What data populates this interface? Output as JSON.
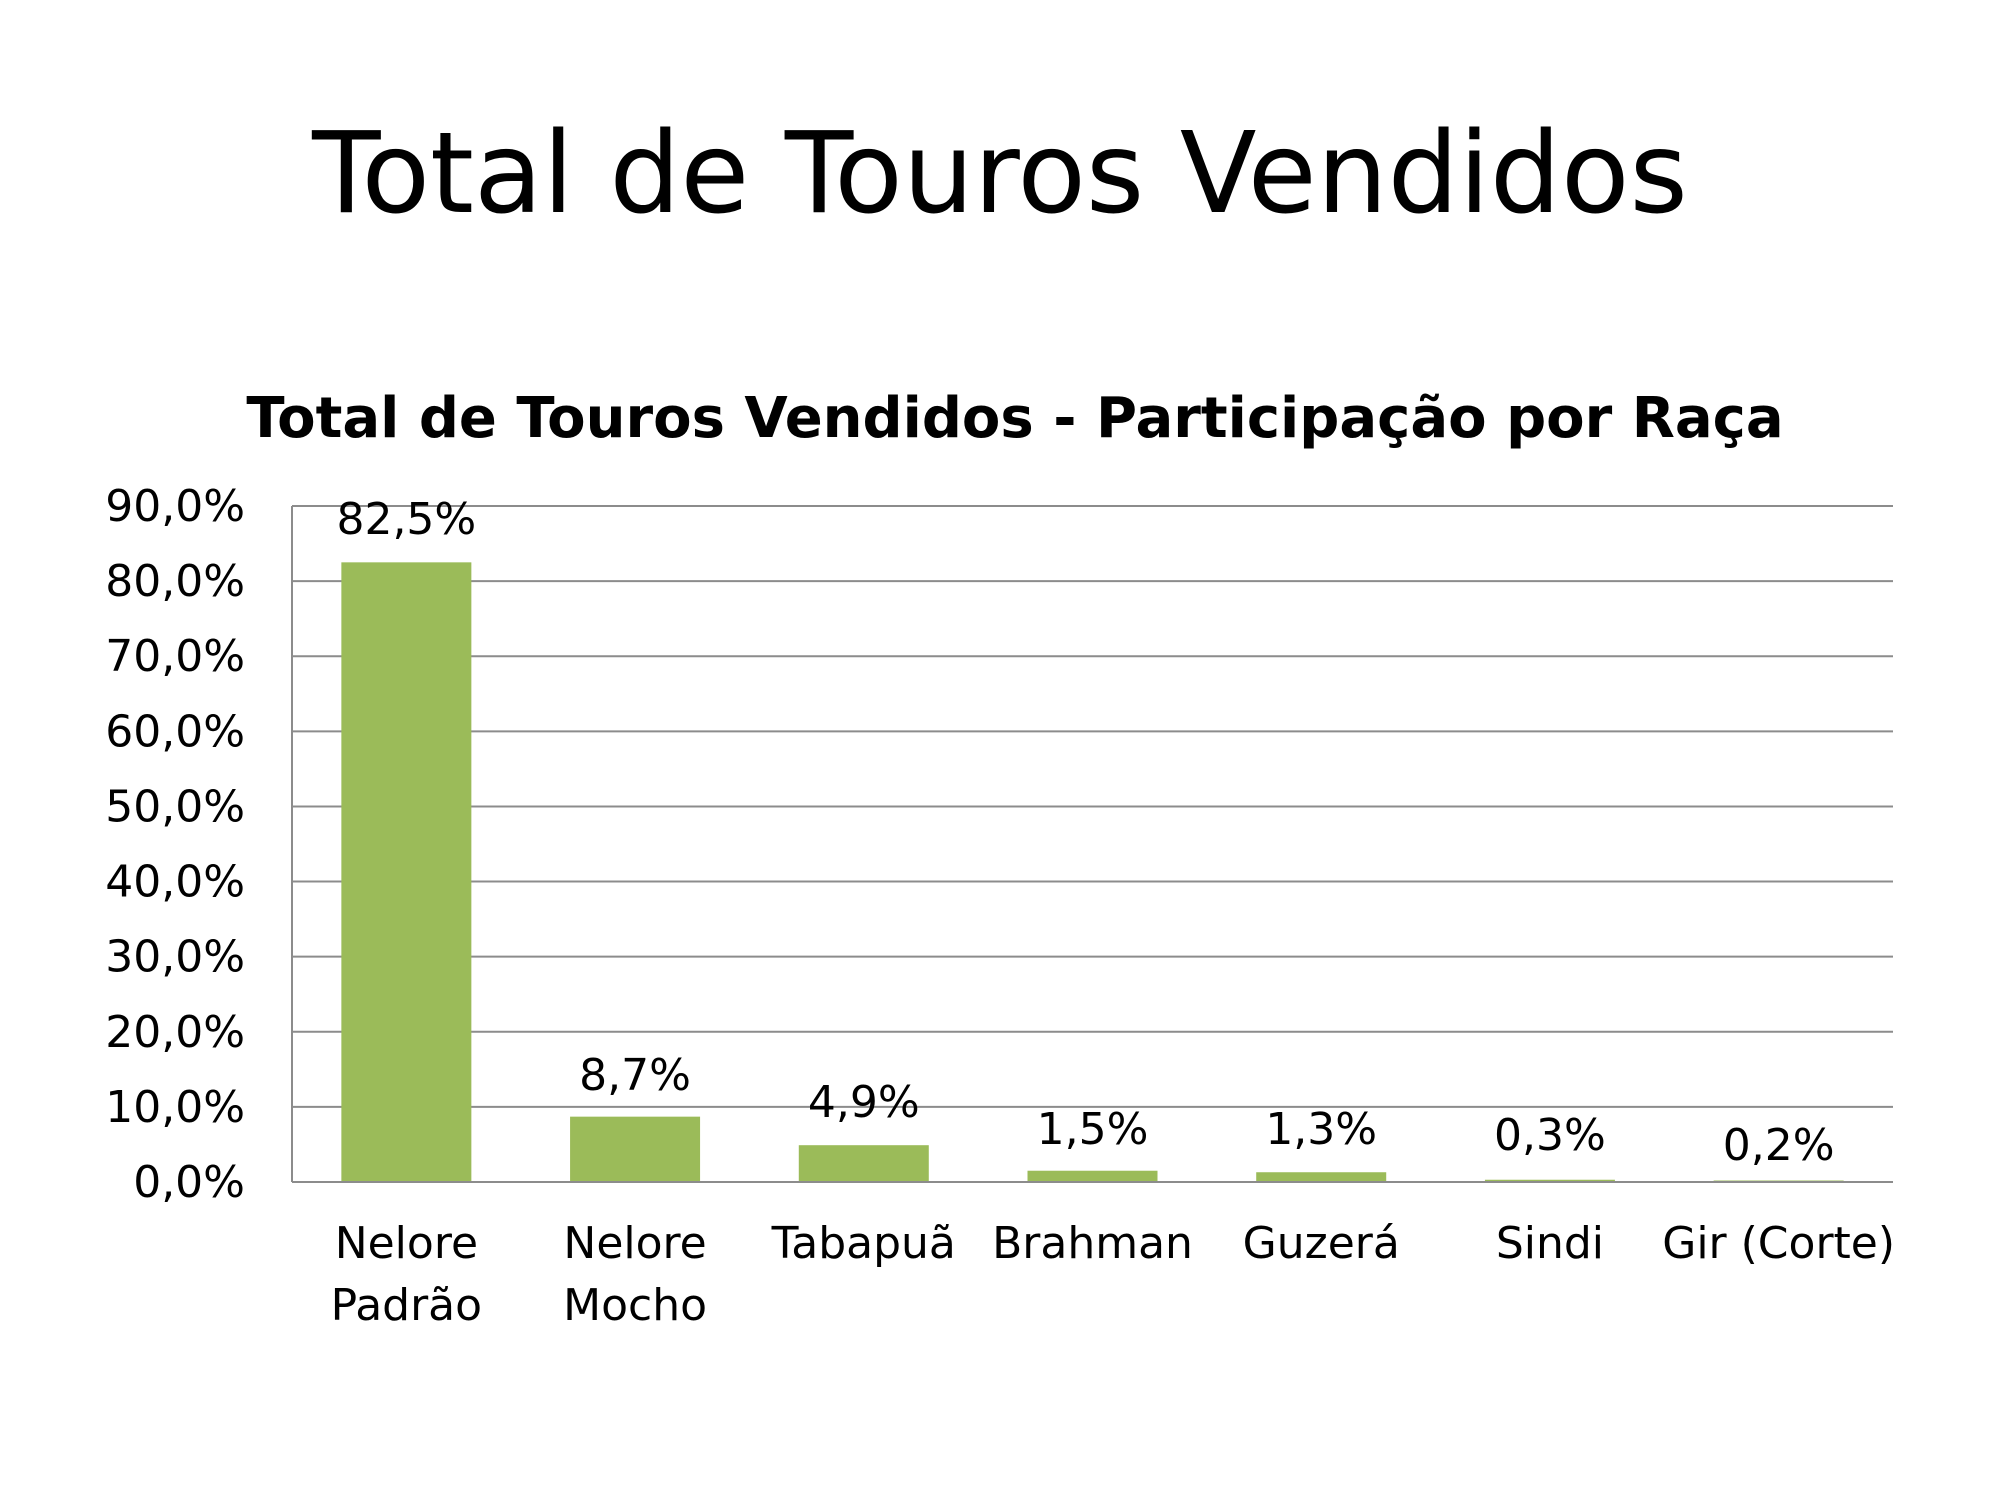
{
  "slide": {
    "title": "Total de Touros Vendidos"
  },
  "chart_data": {
    "type": "bar",
    "title": "Total de Touros Vendidos - Participação por Raça",
    "xlabel": "",
    "ylabel": "",
    "categories": [
      [
        "Nelore",
        "Padrão"
      ],
      [
        "Nelore",
        "Mocho"
      ],
      [
        "Tabapuã"
      ],
      [
        "Brahman"
      ],
      [
        "Guzerá"
      ],
      [
        "Sindi"
      ],
      [
        "Gir (Corte)"
      ]
    ],
    "values": [
      82.5,
      8.7,
      4.9,
      1.5,
      1.3,
      0.3,
      0.2
    ],
    "data_labels": [
      "82,5%",
      "8,7%",
      "4,9%",
      "1,5%",
      "1,3%",
      "0,3%",
      "0,2%"
    ],
    "ylim": [
      0,
      90
    ],
    "yticks": [
      0,
      10,
      20,
      30,
      40,
      50,
      60,
      70,
      80,
      90
    ],
    "ytick_labels": [
      "0,0%",
      "10,0%",
      "20,0%",
      "30,0%",
      "40,0%",
      "50,0%",
      "60,0%",
      "70,0%",
      "80,0%",
      "90,0%"
    ],
    "grid": true,
    "legend": "none",
    "bar_color": "#9bbb59"
  }
}
